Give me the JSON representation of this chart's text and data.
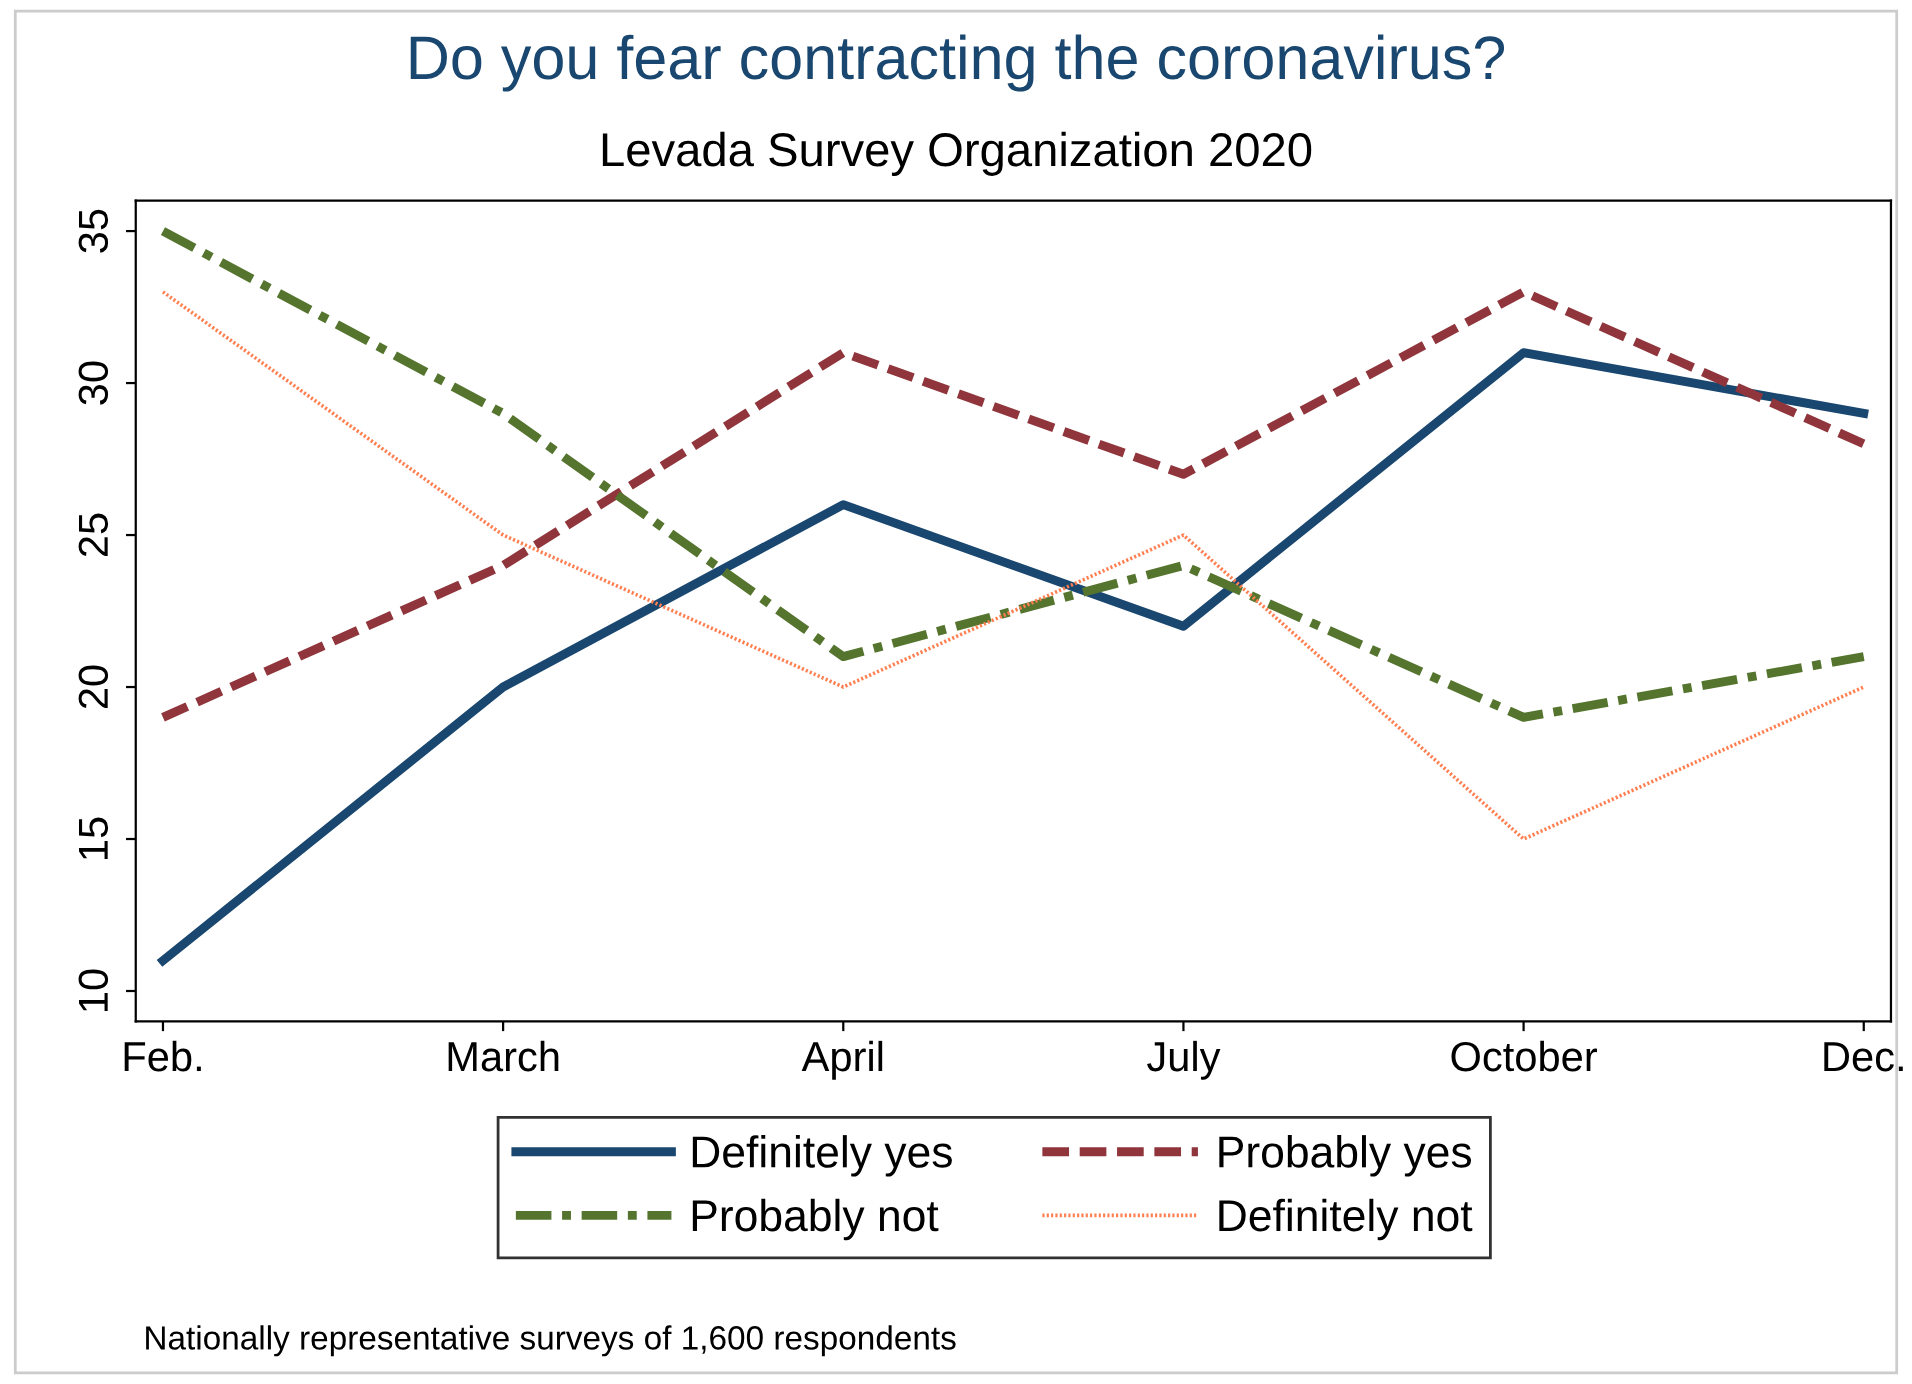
{
  "chart_data": {
    "type": "line",
    "title": "Do you fear contracting the coronavirus?",
    "subtitle": "Levada Survey Organization 2020",
    "categories": [
      "Feb.",
      "March",
      "April",
      "July",
      "October",
      "Dec."
    ],
    "series": [
      {
        "name": "Definitely yes",
        "color": "#1a476f",
        "values": [
          11,
          20,
          26,
          22,
          31,
          29
        ],
        "line_style": "solid"
      },
      {
        "name": "Probably yes",
        "color": "#90353b",
        "values": [
          19,
          24,
          31,
          27,
          33,
          28
        ],
        "line_style": "dashed"
      },
      {
        "name": "Probably not",
        "color": "#55752f",
        "values": [
          35,
          29,
          21,
          24,
          19,
          21
        ],
        "line_style": "dashdot"
      },
      {
        "name": "Definitely not",
        "color": "#ff7f50",
        "values": [
          33,
          25,
          20,
          25,
          15,
          20
        ],
        "line_style": "dotted"
      }
    ],
    "ylim": [
      9,
      36
    ],
    "yticks": [
      10,
      15,
      20,
      25,
      30,
      35
    ],
    "grid": false,
    "legend": "bottom",
    "marker": "none",
    "annotations": [
      "Nationally representative surveys of 1,600 respondents"
    ]
  }
}
